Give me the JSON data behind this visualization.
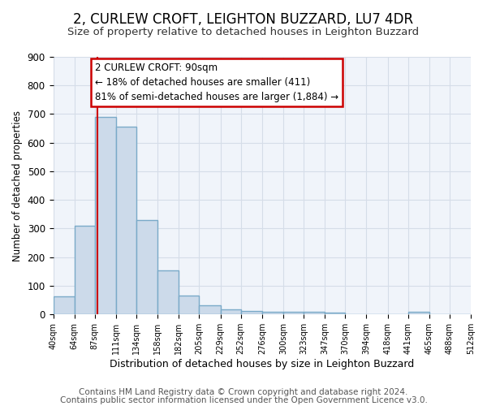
{
  "title1": "2, CURLEW CROFT, LEIGHTON BUZZARD, LU7 4DR",
  "title2": "Size of property relative to detached houses in Leighton Buzzard",
  "xlabel": "Distribution of detached houses by size in Leighton Buzzard",
  "ylabel": "Number of detached properties",
  "footer1": "Contains HM Land Registry data © Crown copyright and database right 2024.",
  "footer2": "Contains public sector information licensed under the Open Government Licence v3.0.",
  "bin_edges": [
    40,
    64,
    87,
    111,
    134,
    158,
    182,
    205,
    229,
    252,
    276,
    300,
    323,
    347,
    370,
    394,
    418,
    441,
    465,
    488,
    512
  ],
  "bar_heights": [
    63,
    310,
    690,
    655,
    330,
    153,
    65,
    33,
    18,
    13,
    10,
    10,
    8,
    5,
    0,
    0,
    0,
    8,
    0,
    0
  ],
  "bar_color": "#ccdaea",
  "bar_edge_color": "#7aaac8",
  "bar_edge_width": 1.0,
  "vline_x": 90,
  "vline_color": "#cc0000",
  "annotation_line1": "2 CURLEW CROFT: 90sqm",
  "annotation_line2": "← 18% of detached houses are smaller (411)",
  "annotation_line3": "81% of semi-detached houses are larger (1,884) →",
  "annotation_box_color": "#ffffff",
  "annotation_box_edge": "#cc0000",
  "ylim": [
    0,
    900
  ],
  "yticks": [
    0,
    100,
    200,
    300,
    400,
    500,
    600,
    700,
    800,
    900
  ],
  "tick_labels": [
    "40sqm",
    "64sqm",
    "87sqm",
    "111sqm",
    "134sqm",
    "158sqm",
    "182sqm",
    "205sqm",
    "229sqm",
    "252sqm",
    "276sqm",
    "300sqm",
    "323sqm",
    "347sqm",
    "370sqm",
    "394sqm",
    "418sqm",
    "441sqm",
    "465sqm",
    "488sqm",
    "512sqm"
  ],
  "grid_color": "#d5dde8",
  "bg_color": "#ffffff",
  "plot_bg_color": "#f0f4fa",
  "title1_fontsize": 12,
  "title2_fontsize": 9.5,
  "footer_fontsize": 7.5,
  "annot_fontsize": 8.5
}
